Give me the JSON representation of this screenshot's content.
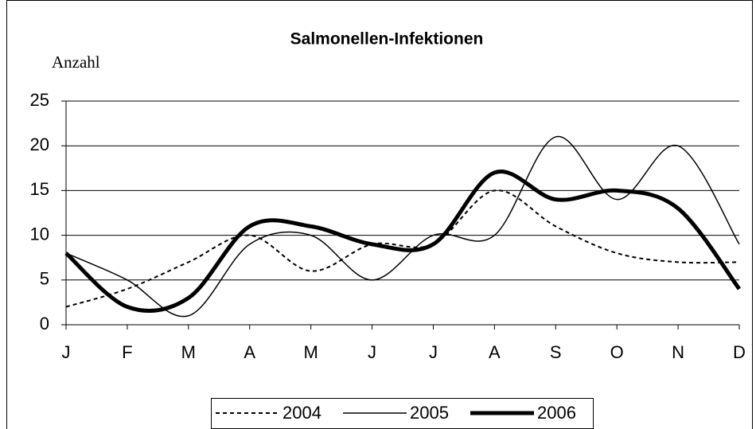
{
  "chart_data": {
    "type": "line",
    "title": "Salmonellen-Infektionen",
    "y_label": "Anzahl",
    "categories": [
      "J",
      "F",
      "M",
      "A",
      "M",
      "J",
      "J",
      "A",
      "S",
      "O",
      "N",
      "D"
    ],
    "series": [
      {
        "name": "2004",
        "color": "#000000",
        "line_style": "dashed",
        "values": [
          2,
          4,
          7,
          10,
          6,
          9,
          9,
          15,
          11,
          8,
          7,
          7
        ]
      },
      {
        "name": "2005",
        "color": "#000000",
        "line_style": "thin",
        "values": [
          8,
          5,
          1,
          9,
          10,
          5,
          10,
          10,
          21,
          14,
          20,
          9
        ]
      },
      {
        "name": "2006",
        "color": "#000000",
        "line_style": "thick",
        "values": [
          8,
          2,
          3,
          11,
          11,
          9,
          9,
          17,
          14,
          15,
          13,
          4
        ]
      }
    ],
    "ylim": [
      0,
      25
    ],
    "yticks": [
      0,
      5,
      10,
      15,
      20,
      25
    ],
    "grid": true,
    "smooth": true,
    "legend": "bottom"
  }
}
